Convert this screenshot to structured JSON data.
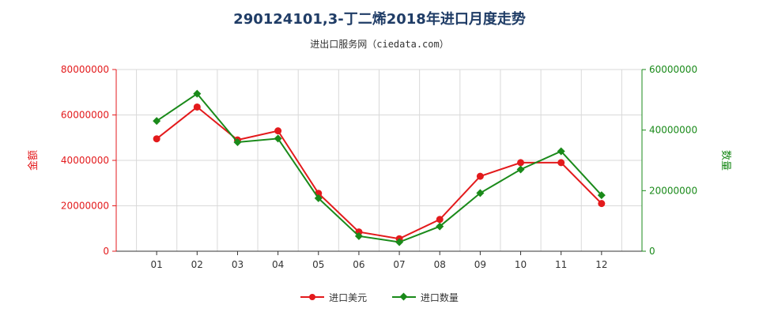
{
  "header": {
    "title": "290124101,3-丁二烯2018年进口月度走势",
    "subtitle": "进出口服务网（ciedata.com）"
  },
  "colors": {
    "value_series": "#e31a1c",
    "quantity_series": "#1a8a1a",
    "grid": "#d9d9d9"
  },
  "chart_data": {
    "type": "line",
    "categories": [
      "01",
      "02",
      "03",
      "04",
      "05",
      "06",
      "07",
      "08",
      "09",
      "10",
      "11",
      "12"
    ],
    "y_left": {
      "label": "金额",
      "ylim": [
        0,
        80000000
      ],
      "ticks": [
        "0",
        "20000000",
        "40000000",
        "60000000",
        "80000000"
      ]
    },
    "y_right": {
      "label": "数量",
      "ylim": [
        0,
        60000000
      ],
      "ticks": [
        "0",
        "20000000",
        "40000000",
        "60000000"
      ]
    },
    "grid": true,
    "legend_position": "bottom",
    "series": [
      {
        "name": "进口美元",
        "axis": "left",
        "marker": "circle",
        "values": [
          49500000,
          63500000,
          49000000,
          53000000,
          25500000,
          8500000,
          5500000,
          14000000,
          33000000,
          39000000,
          39000000,
          21000000
        ]
      },
      {
        "name": "进口数量",
        "axis": "right",
        "marker": "diamond",
        "values": [
          43000000,
          52000000,
          36000000,
          37200000,
          17500000,
          5000000,
          3000000,
          8200000,
          19200000,
          27000000,
          33000000,
          18500000
        ]
      }
    ]
  }
}
